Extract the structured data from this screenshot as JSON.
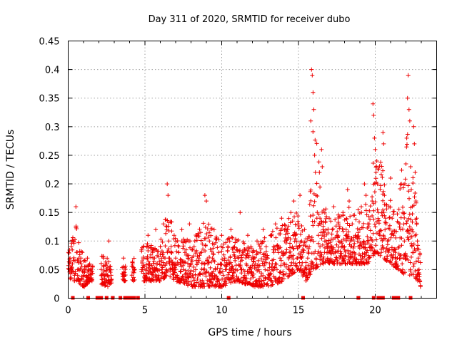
{
  "chart_data": {
    "type": "scatter",
    "title": "Day 311 of 2020, SRMTID for receiver dubo",
    "xlabel": "GPS time / hours",
    "ylabel": "SRMTID / TECUs",
    "xlim": [
      0,
      24
    ],
    "ylim": [
      0,
      0.45
    ],
    "x_ticks": [
      0,
      5,
      10,
      15,
      20
    ],
    "x_tick_labels": [
      "0",
      "5",
      "10",
      "15",
      "20"
    ],
    "y_ticks": [
      0,
      0.05,
      0.1,
      0.15,
      0.2,
      0.25,
      0.3,
      0.35,
      0.4,
      0.45
    ],
    "y_tick_labels": [
      "0",
      "0.05",
      "0.1",
      "0.15",
      "0.2",
      "0.25",
      "0.3",
      "0.35",
      "0.4",
      "0.45"
    ],
    "grid": true,
    "marker": "+",
    "color": "#ee0000",
    "series": [
      {
        "name": "SRMTID",
        "envelope": [
          {
            "x": 0.0,
            "low": 0.03,
            "high": 0.1
          },
          {
            "x": 0.5,
            "low": 0.03,
            "high": 0.16
          },
          {
            "x": 1.0,
            "low": 0.02,
            "high": 0.09
          },
          {
            "x": 1.5,
            "low": 0.03,
            "high": 0.07
          },
          {
            "x": 2.5,
            "low": 0.02,
            "high": 0.1
          },
          {
            "x": 3.0,
            "low": 0.03,
            "high": 0.05
          },
          {
            "x": 4.0,
            "low": 0.03,
            "high": 0.08
          },
          {
            "x": 5.0,
            "low": 0.03,
            "high": 0.12
          },
          {
            "x": 6.0,
            "low": 0.03,
            "high": 0.13
          },
          {
            "x": 6.5,
            "low": 0.04,
            "high": 0.2
          },
          {
            "x": 7.0,
            "low": 0.03,
            "high": 0.13
          },
          {
            "x": 8.0,
            "low": 0.02,
            "high": 0.13
          },
          {
            "x": 9.0,
            "low": 0.02,
            "high": 0.18
          },
          {
            "x": 10.0,
            "low": 0.02,
            "high": 0.12
          },
          {
            "x": 11.0,
            "low": 0.03,
            "high": 0.15
          },
          {
            "x": 12.0,
            "low": 0.02,
            "high": 0.12
          },
          {
            "x": 13.0,
            "low": 0.02,
            "high": 0.14
          },
          {
            "x": 14.0,
            "low": 0.03,
            "high": 0.17
          },
          {
            "x": 15.0,
            "low": 0.05,
            "high": 0.19
          },
          {
            "x": 15.5,
            "low": 0.03,
            "high": 0.15
          },
          {
            "x": 16.0,
            "low": 0.05,
            "high": 0.4
          },
          {
            "x": 16.5,
            "low": 0.06,
            "high": 0.26
          },
          {
            "x": 17.0,
            "low": 0.06,
            "high": 0.16
          },
          {
            "x": 18.0,
            "low": 0.06,
            "high": 0.19
          },
          {
            "x": 19.0,
            "low": 0.06,
            "high": 0.2
          },
          {
            "x": 19.5,
            "low": 0.06,
            "high": 0.2
          },
          {
            "x": 20.0,
            "low": 0.08,
            "high": 0.34
          },
          {
            "x": 20.5,
            "low": 0.07,
            "high": 0.29
          },
          {
            "x": 21.0,
            "low": 0.06,
            "high": 0.21
          },
          {
            "x": 21.5,
            "low": 0.05,
            "high": 0.2
          },
          {
            "x": 22.0,
            "low": 0.04,
            "high": 0.39
          },
          {
            "x": 22.5,
            "low": 0.04,
            "high": 0.3
          },
          {
            "x": 23.0,
            "low": 0.02,
            "high": 0.1
          }
        ],
        "points": [
          [
            0.05,
            0.05
          ],
          [
            0.12,
            0.07
          ],
          [
            0.2,
            0.09
          ],
          [
            0.28,
            0.06
          ],
          [
            0.35,
            0.1
          ],
          [
            0.42,
            0.04
          ],
          [
            0.5,
            0.16
          ],
          [
            0.55,
            0.08
          ],
          [
            0.62,
            0.05
          ],
          [
            0.7,
            0.07
          ],
          [
            0.78,
            0.03
          ],
          [
            0.85,
            0.06
          ],
          [
            0.92,
            0.08
          ],
          [
            1.0,
            0.04
          ],
          [
            1.05,
            0.02
          ],
          [
            1.1,
            0.05
          ],
          [
            1.18,
            0.03
          ],
          [
            1.25,
            0.07
          ],
          [
            1.32,
            0.04
          ],
          [
            1.4,
            0.06
          ],
          [
            1.48,
            0.05
          ],
          [
            1.55,
            0.03
          ],
          [
            2.2,
            0.04
          ],
          [
            2.3,
            0.07
          ],
          [
            2.4,
            0.03
          ],
          [
            2.5,
            0.06
          ],
          [
            2.58,
            0.02
          ],
          [
            2.65,
            0.1
          ],
          [
            2.72,
            0.05
          ],
          [
            2.8,
            0.04
          ],
          [
            3.6,
            0.07
          ],
          [
            3.65,
            0.04
          ],
          [
            4.2,
            0.06
          ],
          [
            4.3,
            0.05
          ],
          [
            4.8,
            0.05
          ],
          [
            4.9,
            0.09
          ],
          [
            5.0,
            0.04
          ],
          [
            5.1,
            0.07
          ],
          [
            5.2,
            0.11
          ],
          [
            5.3,
            0.06
          ],
          [
            5.4,
            0.03
          ],
          [
            5.5,
            0.08
          ],
          [
            5.6,
            0.05
          ],
          [
            5.7,
            0.12
          ],
          [
            5.8,
            0.06
          ],
          [
            5.9,
            0.04
          ],
          [
            6.0,
            0.09
          ],
          [
            6.1,
            0.05
          ],
          [
            6.2,
            0.13
          ],
          [
            6.3,
            0.07
          ],
          [
            6.4,
            0.04
          ],
          [
            6.45,
            0.2
          ],
          [
            6.5,
            0.18
          ],
          [
            6.55,
            0.1
          ],
          [
            6.6,
            0.06
          ],
          [
            6.7,
            0.08
          ],
          [
            6.8,
            0.05
          ],
          [
            6.9,
            0.11
          ],
          [
            7.0,
            0.07
          ],
          [
            7.1,
            0.04
          ],
          [
            7.2,
            0.09
          ],
          [
            7.3,
            0.06
          ],
          [
            7.4,
            0.12
          ],
          [
            7.5,
            0.05
          ],
          [
            7.6,
            0.08
          ],
          [
            7.7,
            0.03
          ],
          [
            7.8,
            0.07
          ],
          [
            7.9,
            0.13
          ],
          [
            8.0,
            0.06
          ],
          [
            8.1,
            0.04
          ],
          [
            8.2,
            0.09
          ],
          [
            8.3,
            0.05
          ],
          [
            8.4,
            0.11
          ],
          [
            8.5,
            0.07
          ],
          [
            8.6,
            0.03
          ],
          [
            8.7,
            0.08
          ],
          [
            8.8,
            0.05
          ],
          [
            8.9,
            0.18
          ],
          [
            9.0,
            0.17
          ],
          [
            9.1,
            0.06
          ],
          [
            9.2,
            0.1
          ],
          [
            9.3,
            0.04
          ],
          [
            9.4,
            0.07
          ],
          [
            9.5,
            0.12
          ],
          [
            9.6,
            0.05
          ],
          [
            9.7,
            0.03
          ],
          [
            9.8,
            0.08
          ],
          [
            9.9,
            0.06
          ],
          [
            10.0,
            0.11
          ],
          [
            10.1,
            0.04
          ],
          [
            10.2,
            0.07
          ],
          [
            10.3,
            0.05
          ],
          [
            10.4,
            0.09
          ],
          [
            10.5,
            0.06
          ],
          [
            10.6,
            0.12
          ],
          [
            10.7,
            0.04
          ],
          [
            10.8,
            0.08
          ],
          [
            10.9,
            0.05
          ],
          [
            11.0,
            0.1
          ],
          [
            11.1,
            0.07
          ],
          [
            11.2,
            0.15
          ],
          [
            11.3,
            0.05
          ],
          [
            11.4,
            0.08
          ],
          [
            11.5,
            0.04
          ],
          [
            11.6,
            0.06
          ],
          [
            11.7,
            0.11
          ],
          [
            11.8,
            0.05
          ],
          [
            11.9,
            0.09
          ],
          [
            12.0,
            0.04
          ],
          [
            12.1,
            0.07
          ],
          [
            12.2,
            0.06
          ],
          [
            12.3,
            0.1
          ],
          [
            12.4,
            0.05
          ],
          [
            12.5,
            0.08
          ],
          [
            12.6,
            0.03
          ],
          [
            12.7,
            0.12
          ],
          [
            12.8,
            0.06
          ],
          [
            12.9,
            0.09
          ],
          [
            13.0,
            0.07
          ],
          [
            13.1,
            0.04
          ],
          [
            13.2,
            0.11
          ],
          [
            13.3,
            0.06
          ],
          [
            13.4,
            0.08
          ],
          [
            13.5,
            0.13
          ],
          [
            13.6,
            0.05
          ],
          [
            13.7,
            0.09
          ],
          [
            13.8,
            0.07
          ],
          [
            13.9,
            0.14
          ],
          [
            14.0,
            0.06
          ],
          [
            14.1,
            0.1
          ],
          [
            14.2,
            0.08
          ],
          [
            14.3,
            0.12
          ],
          [
            14.4,
            0.05
          ],
          [
            14.5,
            0.15
          ],
          [
            14.6,
            0.09
          ],
          [
            14.7,
            0.17
          ],
          [
            14.8,
            0.11
          ],
          [
            14.9,
            0.07
          ],
          [
            15.0,
            0.13
          ],
          [
            15.1,
            0.18
          ],
          [
            15.2,
            0.1
          ],
          [
            15.3,
            0.08
          ],
          [
            15.4,
            0.12
          ],
          [
            15.5,
            0.05
          ],
          [
            15.55,
            0.04
          ],
          [
            15.6,
            0.07
          ],
          [
            15.7,
            0.09
          ],
          [
            15.8,
            0.31
          ],
          [
            15.85,
            0.4
          ],
          [
            15.9,
            0.39
          ],
          [
            15.95,
            0.36
          ],
          [
            16.0,
            0.33
          ],
          [
            16.05,
            0.25
          ],
          [
            16.1,
            0.22
          ],
          [
            16.15,
            0.18
          ],
          [
            16.2,
            0.14
          ],
          [
            16.3,
            0.11
          ],
          [
            16.4,
            0.09
          ],
          [
            16.5,
            0.26
          ],
          [
            16.55,
            0.23
          ],
          [
            16.6,
            0.12
          ],
          [
            16.7,
            0.08
          ],
          [
            16.8,
            0.1
          ],
          [
            16.9,
            0.07
          ],
          [
            17.0,
            0.14
          ],
          [
            17.1,
            0.09
          ],
          [
            17.2,
            0.12
          ],
          [
            17.3,
            0.16
          ],
          [
            17.4,
            0.08
          ],
          [
            17.5,
            0.11
          ],
          [
            17.6,
            0.13
          ],
          [
            17.7,
            0.07
          ],
          [
            17.8,
            0.1
          ],
          [
            17.9,
            0.15
          ],
          [
            18.0,
            0.09
          ],
          [
            18.1,
            0.12
          ],
          [
            18.2,
            0.19
          ],
          [
            18.3,
            0.17
          ],
          [
            18.4,
            0.1
          ],
          [
            18.5,
            0.13
          ],
          [
            18.6,
            0.08
          ],
          [
            18.7,
            0.11
          ],
          [
            18.8,
            0.06
          ],
          [
            18.9,
            0.09
          ],
          [
            19.0,
            0.12
          ],
          [
            19.1,
            0.15
          ],
          [
            19.2,
            0.07
          ],
          [
            19.3,
            0.2
          ],
          [
            19.4,
            0.18
          ],
          [
            19.5,
            0.1
          ],
          [
            19.6,
            0.13
          ],
          [
            19.7,
            0.09
          ],
          [
            19.8,
            0.17
          ],
          [
            19.85,
            0.34
          ],
          [
            19.9,
            0.32
          ],
          [
            19.95,
            0.28
          ],
          [
            20.0,
            0.26
          ],
          [
            20.05,
            0.22
          ],
          [
            20.1,
            0.24
          ],
          [
            20.15,
            0.2
          ],
          [
            20.2,
            0.15
          ],
          [
            20.3,
            0.11
          ],
          [
            20.4,
            0.08
          ],
          [
            20.5,
            0.29
          ],
          [
            20.55,
            0.27
          ],
          [
            20.6,
            0.18
          ],
          [
            20.7,
            0.13
          ],
          [
            20.8,
            0.1
          ],
          [
            20.9,
            0.16
          ],
          [
            21.0,
            0.21
          ],
          [
            21.1,
            0.14
          ],
          [
            21.2,
            0.11
          ],
          [
            21.3,
            0.08
          ],
          [
            21.4,
            0.06
          ],
          [
            21.5,
            0.05
          ],
          [
            21.55,
            0.09
          ],
          [
            21.6,
            0.13
          ],
          [
            21.7,
            0.2
          ],
          [
            21.8,
            0.15
          ],
          [
            21.9,
            0.1
          ],
          [
            22.0,
            0.07
          ],
          [
            22.05,
            0.28
          ],
          [
            22.1,
            0.35
          ],
          [
            22.15,
            0.39
          ],
          [
            22.2,
            0.33
          ],
          [
            22.25,
            0.31
          ],
          [
            22.3,
            0.23
          ],
          [
            22.35,
            0.19
          ],
          [
            22.4,
            0.12
          ],
          [
            22.45,
            0.08
          ],
          [
            22.5,
            0.3
          ],
          [
            22.55,
            0.27
          ],
          [
            22.6,
            0.22
          ],
          [
            22.65,
            0.17
          ],
          [
            22.7,
            0.14
          ],
          [
            22.75,
            0.1
          ],
          [
            22.8,
            0.07
          ],
          [
            22.85,
            0.05
          ],
          [
            22.9,
            0.03
          ],
          [
            22.95,
            0.02
          ]
        ],
        "gap_markers_x": [
          0.3,
          1.3,
          1.9,
          2.0,
          2.15,
          2.5,
          2.9,
          3.4,
          3.7,
          3.9,
          4.1,
          4.3,
          4.55,
          10.45,
          15.3,
          18.9,
          19.9,
          20.2,
          20.35,
          20.5,
          21.2,
          21.3,
          21.5,
          22.3
        ]
      }
    ]
  }
}
